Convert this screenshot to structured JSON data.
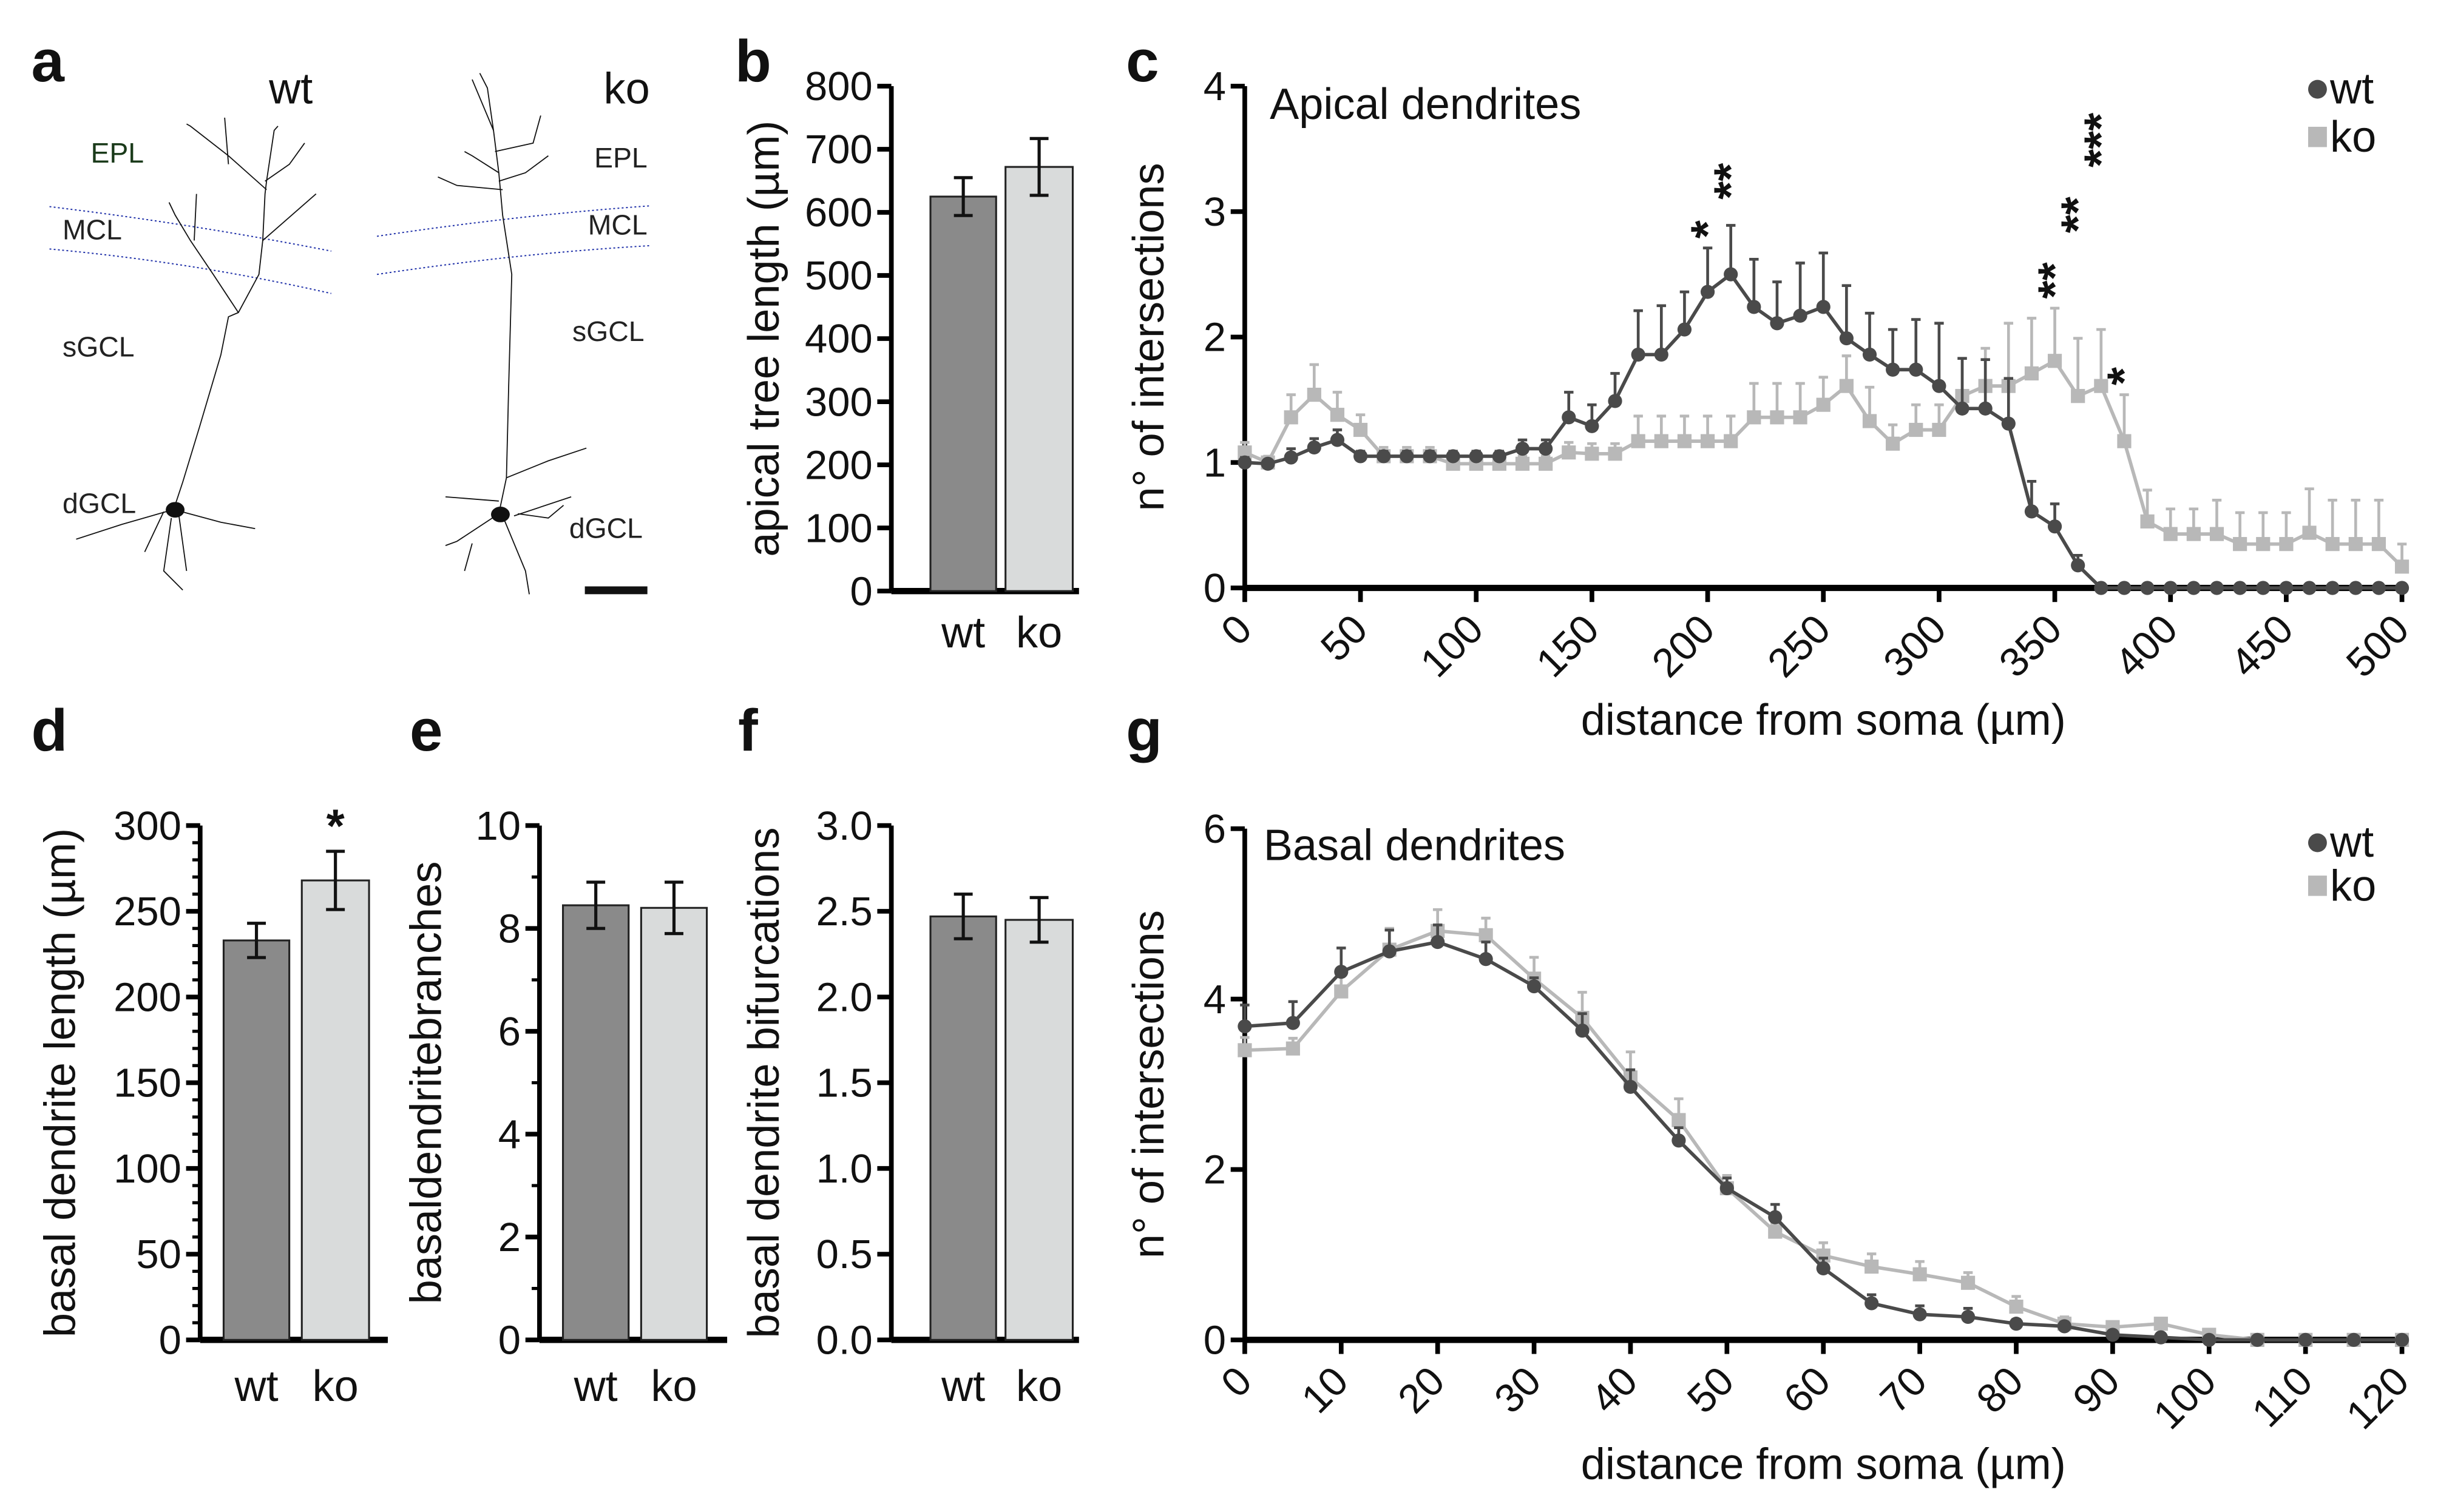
{
  "panel_a": {
    "letter": "a",
    "wt_label": "wt",
    "ko_label": "ko",
    "wt_layers": [
      "EPL",
      "MCL",
      "sGCL",
      "dGCL"
    ],
    "ko_layers": [
      "EPL",
      "MCL",
      "sGCL",
      "dGCL"
    ],
    "epl_color": "#1a3a1a",
    "boundary_color": "#2233aa"
  },
  "colors": {
    "wt_bar": "#8a8a8a",
    "ko_bar": "#d9dbdb",
    "wt_line": "#4a4a4a",
    "ko_line": "#b8b8b8"
  },
  "chart_data": [
    {
      "panel": "b",
      "type": "bar",
      "categories": [
        "wt",
        "ko"
      ],
      "values": [
        625,
        672
      ],
      "errors": [
        30,
        45
      ],
      "ylabel": "apical tree length (µm)",
      "ylim": [
        0,
        800
      ],
      "yticks": [
        "0",
        "100",
        "200",
        "300",
        "400",
        "500",
        "600",
        "700",
        "800"
      ],
      "significance": [
        "",
        ""
      ]
    },
    {
      "panel": "c",
      "type": "line",
      "title": "Apical dendrites",
      "xlabel": "distance from soma (µm)",
      "ylabel": "n° of intersections",
      "xlim": [
        0,
        500
      ],
      "ylim": [
        0,
        4
      ],
      "xticks": [
        "0",
        "50",
        "100",
        "150",
        "200",
        "250",
        "300",
        "350",
        "400",
        "450",
        "500"
      ],
      "yticks": [
        "0",
        "1",
        "2",
        "3",
        "4"
      ],
      "x": [
        0,
        10,
        20,
        30,
        40,
        50,
        60,
        70,
        80,
        90,
        100,
        110,
        120,
        130,
        140,
        150,
        160,
        170,
        180,
        190,
        200,
        210,
        220,
        230,
        240,
        250,
        260,
        270,
        280,
        290,
        300,
        310,
        320,
        330,
        340,
        350,
        360,
        370,
        380,
        390,
        400,
        410,
        420,
        430,
        440,
        450,
        460,
        470,
        480,
        490,
        500
      ],
      "series": [
        {
          "name": "ko",
          "marker": "square",
          "values": [
            1.08,
            1.0,
            1.36,
            1.54,
            1.38,
            1.26,
            1.05,
            1.05,
            1.05,
            0.99,
            0.99,
            0.99,
            0.99,
            0.99,
            1.08,
            1.07,
            1.07,
            1.17,
            1.17,
            1.17,
            1.17,
            1.17,
            1.36,
            1.36,
            1.36,
            1.46,
            1.61,
            1.33,
            1.15,
            1.26,
            1.26,
            1.53,
            1.61,
            1.61,
            1.71,
            1.81,
            1.53,
            1.61,
            1.17,
            0.53,
            0.43,
            0.43,
            0.43,
            0.35,
            0.35,
            0.35,
            0.44,
            0.35,
            0.35,
            0.35,
            0.17
          ],
          "errors": [
            0.08,
            0.05,
            0.18,
            0.24,
            0.18,
            0.12,
            0.07,
            0.07,
            0.07,
            0.06,
            0.06,
            0.06,
            0.06,
            0.06,
            0.08,
            0.08,
            0.08,
            0.2,
            0.2,
            0.2,
            0.2,
            0.2,
            0.27,
            0.27,
            0.27,
            0.22,
            0.24,
            0.27,
            0.15,
            0.2,
            0.2,
            0.3,
            0.3,
            0.5,
            0.44,
            0.42,
            0.46,
            0.45,
            0.37,
            0.25,
            0.2,
            0.2,
            0.27,
            0.25,
            0.25,
            0.25,
            0.35,
            0.35,
            0.35,
            0.35,
            0.18
          ]
        },
        {
          "name": "wt",
          "marker": "circle",
          "values": [
            1.0,
            0.99,
            1.04,
            1.12,
            1.18,
            1.05,
            1.05,
            1.05,
            1.05,
            1.05,
            1.05,
            1.05,
            1.11,
            1.11,
            1.36,
            1.29,
            1.49,
            1.86,
            1.86,
            2.06,
            2.36,
            2.5,
            2.24,
            2.11,
            2.17,
            2.24,
            1.99,
            1.86,
            1.74,
            1.74,
            1.61,
            1.43,
            1.43,
            1.31,
            0.61,
            0.49,
            0.18,
            0,
            0,
            0,
            0,
            0,
            0,
            0,
            0,
            0,
            0,
            0,
            0,
            0,
            0
          ],
          "errors": [
            0.04,
            0.03,
            0.07,
            0.07,
            0.08,
            0.04,
            0.04,
            0.04,
            0.04,
            0.04,
            0.04,
            0.04,
            0.07,
            0.07,
            0.2,
            0.17,
            0.22,
            0.35,
            0.39,
            0.3,
            0.35,
            0.39,
            0.38,
            0.33,
            0.42,
            0.43,
            0.42,
            0.33,
            0.32,
            0.4,
            0.5,
            0.4,
            0.39,
            0.36,
            0.24,
            0.18,
            0.08,
            0,
            0,
            0,
            0,
            0,
            0,
            0,
            0,
            0,
            0,
            0,
            0,
            0,
            0
          ]
        }
      ],
      "legend": [
        "wt",
        "ko"
      ],
      "legend_position": "top-right",
      "annotations": [
        {
          "x": 200,
          "label": "*"
        },
        {
          "x": 210,
          "label": "**"
        },
        {
          "x": 350,
          "label": "**"
        },
        {
          "x": 360,
          "label": "**"
        },
        {
          "x": 370,
          "label": "***"
        },
        {
          "x": 380,
          "label": "*"
        }
      ]
    },
    {
      "panel": "d",
      "type": "bar",
      "categories": [
        "wt",
        "ko"
      ],
      "values": [
        233,
        268
      ],
      "errors": [
        10,
        17
      ],
      "ylabel": "basal dendrite length (µm)",
      "ylim": [
        0,
        300
      ],
      "yticks": [
        "0",
        "50",
        "100",
        "150",
        "200",
        "250",
        "300"
      ],
      "significance": [
        "",
        "*"
      ]
    },
    {
      "panel": "e",
      "type": "bar",
      "categories": [
        "wt",
        "ko"
      ],
      "values": [
        8.45,
        8.4
      ],
      "errors": [
        0.45,
        0.5
      ],
      "ylabel": "basaldendritebranches",
      "ylim": [
        0,
        10
      ],
      "yticks": [
        "0",
        "2",
        "4",
        "6",
        "8",
        "10"
      ],
      "significance": [
        "",
        ""
      ]
    },
    {
      "panel": "f",
      "type": "bar",
      "categories": [
        "wt",
        "ko"
      ],
      "values": [
        2.47,
        2.45
      ],
      "errors": [
        0.13,
        0.13
      ],
      "ylabel": "basal dendrite bifurcations",
      "ylim": [
        0,
        3
      ],
      "yticks": [
        "0.0",
        "0.5",
        "1.0",
        "1.5",
        "2.0",
        "2.5",
        "3.0"
      ],
      "significance": [
        "",
        ""
      ]
    },
    {
      "panel": "g",
      "type": "line",
      "title": "Basal dendrites",
      "xlabel": "distance from soma (µm)",
      "ylabel": "n° of intersections",
      "xlim": [
        0,
        120
      ],
      "ylim": [
        0,
        6
      ],
      "xticks": [
        "0",
        "10",
        "20",
        "30",
        "40",
        "50",
        "60",
        "70",
        "80",
        "90",
        "100",
        "110",
        "120"
      ],
      "yticks": [
        "0",
        "2",
        "4",
        "6"
      ],
      "x": [
        0,
        5,
        10,
        15,
        20,
        25,
        30,
        35,
        40,
        45,
        50,
        55,
        60,
        65,
        70,
        75,
        80,
        85,
        90,
        95,
        100,
        105,
        110,
        115,
        120
      ],
      "series": [
        {
          "name": "ko",
          "marker": "square",
          "values": [
            3.4,
            3.42,
            4.09,
            4.58,
            4.8,
            4.75,
            4.24,
            3.78,
            3.08,
            2.58,
            1.78,
            1.27,
            0.99,
            0.86,
            0.77,
            0.67,
            0.39,
            0.19,
            0.15,
            0.19,
            0.06,
            0,
            0,
            0,
            0
          ],
          "errors": [
            0.15,
            0.12,
            0.2,
            0.25,
            0.25,
            0.2,
            0.25,
            0.3,
            0.3,
            0.25,
            0.15,
            0.1,
            0.15,
            0.15,
            0.15,
            0.12,
            0.12,
            0.08,
            0.06,
            0.05,
            0.03,
            0,
            0,
            0,
            0
          ]
        },
        {
          "name": "wt",
          "marker": "circle",
          "values": [
            3.68,
            3.72,
            4.32,
            4.56,
            4.67,
            4.47,
            4.15,
            3.63,
            2.97,
            2.34,
            1.78,
            1.44,
            0.84,
            0.43,
            0.3,
            0.27,
            0.19,
            0.16,
            0.06,
            0.03,
            0,
            0,
            0,
            0,
            0
          ],
          "errors": [
            0.25,
            0.25,
            0.28,
            0.25,
            0.2,
            0.2,
            0.1,
            0.2,
            0.2,
            0.15,
            0.12,
            0.15,
            0.12,
            0.1,
            0.1,
            0.1,
            0.05,
            0.05,
            0.03,
            0.02,
            0,
            0,
            0,
            0,
            0
          ]
        }
      ],
      "legend": [
        "wt",
        "ko"
      ],
      "legend_position": "top-right",
      "annotations": []
    }
  ]
}
